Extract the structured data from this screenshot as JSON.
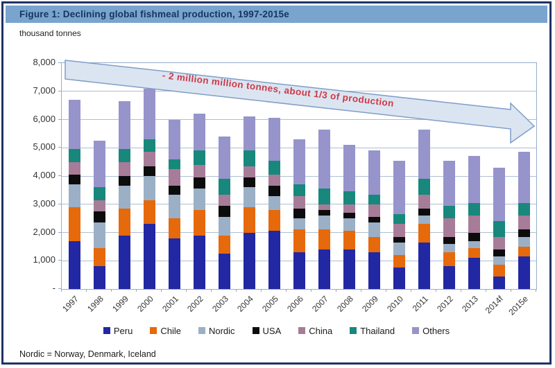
{
  "figure": {
    "title": "Figure 1: Declining global fishmeal production, 1997-2015e",
    "units_label": "thousand tonnes",
    "annotation": "- 2 million million tonnes, about 1/3 of production",
    "footnote": "Nordic = Norway, Denmark, Iceland"
  },
  "colors": {
    "frame_border": "#1F3266",
    "title_bar_bg": "#79A4CE",
    "title_text": "#15345C",
    "plot_border": "#95AEC9",
    "grid_line": "#ADBED2",
    "tick_mark": "#8FA8C4",
    "axis_text": "#333333",
    "annotation_text": "#CE3946",
    "arrow_fill": "#DBE5F1",
    "arrow_border": "#7F9DC9"
  },
  "chart_data": {
    "type": "bar",
    "stacked": true,
    "title": "Figure 1: Declining global fishmeal production, 1997-2015e",
    "xlabel": "",
    "ylabel": "thousand tonnes",
    "ylim": [
      0,
      8000
    ],
    "ytick_interval": 1000,
    "ytick_labels_top_down": [
      "8,000",
      "7,000",
      "6,000",
      "5,000",
      "4,000",
      "3,000",
      "2,000",
      "1,000",
      "-"
    ],
    "grid": true,
    "legend_position": "bottom",
    "x_label_rotation_deg": 45,
    "categories": [
      "1997",
      "1998",
      "1999",
      "2000",
      "2001",
      "2002",
      "2003",
      "2004",
      "2005",
      "2006",
      "2007",
      "2008",
      "2009",
      "2010",
      "2011",
      "2012",
      "2013",
      "2014f",
      "2015e"
    ],
    "series": [
      {
        "name": "Peru",
        "color": "#2227A3",
        "values": [
          1700,
          800,
          1900,
          2300,
          1800,
          1900,
          1250,
          2000,
          2050,
          1300,
          1400,
          1400,
          1300,
          750,
          1650,
          800,
          1100,
          450,
          1150
        ]
      },
      {
        "name": "Chile",
        "color": "#E6690B",
        "values": [
          1200,
          650,
          950,
          850,
          700,
          900,
          650,
          900,
          750,
          800,
          700,
          650,
          550,
          450,
          650,
          500,
          350,
          400,
          350
        ]
      },
      {
        "name": "Nordic",
        "color": "#9BB0C6",
        "values": [
          800,
          900,
          800,
          850,
          850,
          750,
          650,
          700,
          500,
          400,
          500,
          450,
          500,
          450,
          300,
          300,
          250,
          300,
          350
        ]
      },
      {
        "name": "USA",
        "color": "#0C0C0C",
        "values": [
          350,
          400,
          350,
          350,
          300,
          400,
          400,
          350,
          350,
          350,
          200,
          200,
          200,
          200,
          250,
          250,
          300,
          250,
          250
        ]
      },
      {
        "name": "China",
        "color": "#A77C99",
        "values": [
          450,
          400,
          500,
          500,
          600,
          450,
          400,
          400,
          400,
          450,
          200,
          300,
          450,
          450,
          500,
          650,
          600,
          450,
          500
        ]
      },
      {
        "name": "Thailand",
        "color": "#17887B",
        "values": [
          450,
          450,
          450,
          450,
          350,
          500,
          550,
          550,
          500,
          400,
          550,
          450,
          350,
          350,
          550,
          450,
          450,
          550,
          450
        ]
      },
      {
        "name": "Others",
        "color": "#9694CB",
        "values": [
          1750,
          1650,
          1700,
          1800,
          1400,
          1300,
          1500,
          1200,
          1500,
          1600,
          2100,
          1650,
          1550,
          1900,
          1750,
          1600,
          1650,
          1900,
          1800
        ]
      }
    ],
    "totals": [
      6700,
      5250,
      6650,
      7100,
      6000,
      6200,
      5400,
      6100,
      6050,
      5300,
      5650,
      5100,
      4900,
      4550,
      5650,
      4550,
      4700,
      4300,
      4850
    ],
    "annotation": "- 2 million million tonnes, about 1/3 of production"
  }
}
